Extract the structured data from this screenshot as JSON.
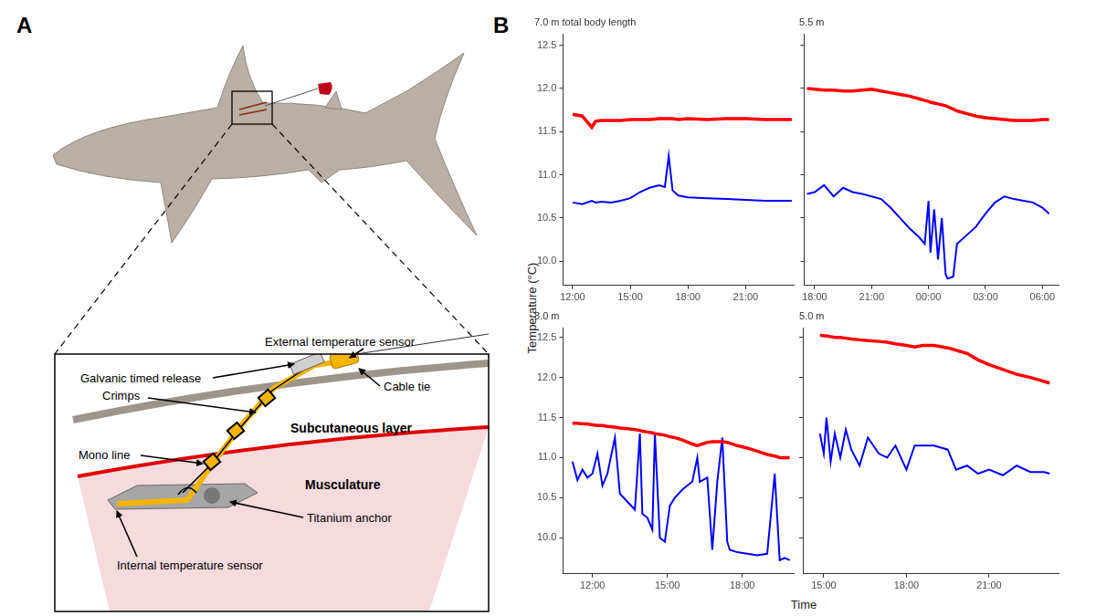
{
  "panel_labels": {
    "a": "A",
    "b": "B"
  },
  "diagram": {
    "callouts": [
      "External temperature sensor",
      "Galvanic timed release",
      "Cable tie",
      "Crimps",
      "Mono line",
      "Titanium anchor",
      "Internal temperature sensor"
    ],
    "layers": [
      "Subcutaneous layer",
      "Musculature"
    ]
  },
  "y_label": "Temperature (°C)",
  "x_label": "Time",
  "chart_data": [
    {
      "type": "line",
      "title": "7.0 m total body length",
      "x": [
        12.0,
        12.5,
        13.0,
        13.2,
        13.5,
        14,
        14.5,
        15,
        15.5,
        16,
        16.5,
        16.8,
        17.0,
        17.2,
        17.5,
        18,
        19,
        20,
        21,
        22,
        23,
        23.4
      ],
      "series": [
        {
          "color": "#ff0000",
          "values": [
            11.7,
            11.68,
            11.55,
            11.62,
            11.63,
            11.63,
            11.63,
            11.64,
            11.64,
            11.64,
            11.65,
            11.65,
            11.65,
            11.65,
            11.64,
            11.65,
            11.64,
            11.65,
            11.65,
            11.64,
            11.64,
            11.64
          ]
        },
        {
          "color": "#0000ff",
          "values": [
            10.68,
            10.66,
            10.7,
            10.68,
            10.69,
            10.68,
            10.7,
            10.73,
            10.8,
            10.85,
            10.88,
            10.86,
            11.22,
            10.82,
            10.76,
            10.74,
            10.73,
            10.72,
            10.71,
            10.7,
            10.7,
            10.7
          ]
        }
      ],
      "xlim": [
        11.5,
        23.5
      ],
      "xticks": [
        {
          "value": 12,
          "label": "12:00"
        },
        {
          "value": 15,
          "label": "15:00"
        },
        {
          "value": 18,
          "label": "18:00"
        },
        {
          "value": 21,
          "label": "21:00"
        }
      ],
      "ylim": [
        9.72,
        12.63
      ],
      "yticks": [
        {
          "value": 10,
          "label": "10.0"
        },
        10.5,
        {
          "value": 11,
          "label": "11.0"
        },
        11.5,
        {
          "value": 12,
          "label": "12.0"
        },
        12.5
      ],
      "grid": false
    },
    {
      "type": "line",
      "title": "5.5 m",
      "x": [
        17.6,
        18,
        18.5,
        19,
        19.5,
        20,
        20.5,
        21,
        21.5,
        22,
        22.5,
        23,
        23.5,
        23.8,
        24,
        24.1,
        24.3,
        24.5,
        24.7,
        24.9,
        25,
        25.3,
        25.5,
        26,
        26.5,
        27,
        27.5,
        28,
        28.5,
        29,
        29.5,
        30,
        30.35
      ],
      "series": [
        {
          "color": "#ff0000",
          "values": [
            12.0,
            11.99,
            11.98,
            11.98,
            11.97,
            11.97,
            11.98,
            11.99,
            11.97,
            11.95,
            11.93,
            11.91,
            11.88,
            11.86,
            11.85,
            11.84,
            11.83,
            11.82,
            11.81,
            11.8,
            11.79,
            11.76,
            11.74,
            11.71,
            11.68,
            11.66,
            11.65,
            11.64,
            11.63,
            11.63,
            11.63,
            11.64,
            11.64
          ]
        },
        {
          "color": "#0000ff",
          "values": [
            10.78,
            10.8,
            10.88,
            10.75,
            10.85,
            10.8,
            10.78,
            10.75,
            10.72,
            10.62,
            10.5,
            10.38,
            10.28,
            10.2,
            10.7,
            10.1,
            10.6,
            10.02,
            10.5,
            9.85,
            9.8,
            9.82,
            10.2,
            10.3,
            10.4,
            10.55,
            10.68,
            10.75,
            10.72,
            10.7,
            10.68,
            10.62,
            10.55
          ]
        }
      ],
      "xlim": [
        17.45,
        30.85
      ],
      "xticks": [
        {
          "value": 18,
          "label": "18:00"
        },
        {
          "value": 21,
          "label": "21:00"
        },
        {
          "value": 24,
          "label": "00:00"
        },
        {
          "value": 27,
          "label": "03:00"
        },
        {
          "value": 30,
          "label": "06:00"
        }
      ],
      "ylim": [
        9.72,
        12.63
      ],
      "yticks": [
        {
          "value": 10,
          "label": "10.0"
        },
        10.5,
        {
          "value": 11,
          "label": "11.0"
        },
        11.5,
        {
          "value": 12,
          "label": "12.0"
        },
        12.5
      ],
      "grid": false,
      "tick_labels": "x"
    },
    {
      "type": "line",
      "title": "8.0 m",
      "x": [
        11.2,
        11.4,
        11.6,
        11.8,
        12.0,
        12.2,
        12.4,
        12.6,
        12.9,
        13.1,
        13.4,
        13.7,
        13.9,
        14.0,
        14.2,
        14.4,
        14.5,
        14.7,
        14.9,
        15.1,
        15.3,
        15.6,
        16.0,
        16.2,
        16.3,
        16.6,
        16.8,
        17.0,
        17.2,
        17.4,
        17.5,
        17.8,
        18.2,
        18.6,
        19.0,
        19.3,
        19.5,
        19.7,
        19.9
      ],
      "series": [
        {
          "color": "#ff0000",
          "values": [
            11.43,
            11.43,
            11.42,
            11.42,
            11.41,
            11.4,
            11.4,
            11.39,
            11.38,
            11.37,
            11.36,
            11.35,
            11.34,
            11.33,
            11.32,
            11.31,
            11.3,
            11.29,
            11.28,
            11.26,
            11.25,
            11.22,
            11.17,
            11.15,
            11.16,
            11.19,
            11.2,
            11.2,
            11.2,
            11.19,
            11.18,
            11.15,
            11.12,
            11.08,
            11.04,
            11.02,
            11.0,
            11.0,
            11.0
          ]
        },
        {
          "color": "#0000ff",
          "values": [
            10.95,
            10.72,
            10.85,
            10.75,
            10.8,
            11.05,
            10.65,
            10.8,
            11.25,
            10.55,
            10.45,
            10.35,
            11.3,
            10.3,
            10.25,
            10.1,
            11.3,
            10.0,
            9.95,
            10.4,
            10.5,
            10.6,
            10.7,
            11.0,
            10.7,
            10.75,
            9.85,
            10.7,
            11.25,
            9.95,
            9.85,
            9.82,
            9.8,
            9.78,
            9.8,
            10.8,
            9.72,
            9.75,
            9.72
          ]
        }
      ],
      "xlim": [
        10.82,
        20.06
      ],
      "xticks": [
        {
          "value": 12,
          "label": "12:00"
        },
        {
          "value": 15,
          "label": "15:00"
        },
        {
          "value": 18,
          "label": "18:00"
        }
      ],
      "ylim": [
        9.55,
        12.62
      ],
      "yticks": [
        {
          "value": 10,
          "label": "10.0"
        },
        10.5,
        {
          "value": 11,
          "label": "11.0"
        },
        11.5,
        {
          "value": 12,
          "label": "12.0"
        },
        12.5
      ],
      "grid": false
    },
    {
      "type": "line",
      "title": "5.0 m",
      "x": [
        14.86,
        15.0,
        15.1,
        15.25,
        15.4,
        15.6,
        15.8,
        16.0,
        16.3,
        16.6,
        17.0,
        17.3,
        17.6,
        18.0,
        18.3,
        18.6,
        19.0,
        19.5,
        19.8,
        20.2,
        20.6,
        21.0,
        21.5,
        22.0,
        22.5,
        23.0,
        23.2
      ],
      "series": [
        {
          "color": "#ff0000",
          "values": [
            12.53,
            12.52,
            12.52,
            12.51,
            12.5,
            12.5,
            12.49,
            12.48,
            12.47,
            12.46,
            12.45,
            12.44,
            12.42,
            12.4,
            12.38,
            12.4,
            12.4,
            12.37,
            12.34,
            12.3,
            12.22,
            12.16,
            12.1,
            12.04,
            12.0,
            11.95,
            11.93
          ]
        },
        {
          "color": "#0000ff",
          "values": [
            11.3,
            11.05,
            11.5,
            10.95,
            11.3,
            11.0,
            11.35,
            11.1,
            10.9,
            11.25,
            11.05,
            11.0,
            11.15,
            10.85,
            11.15,
            11.15,
            11.15,
            11.1,
            10.85,
            10.9,
            10.8,
            10.85,
            10.78,
            10.9,
            10.82,
            10.82,
            10.8
          ]
        }
      ],
      "xlim": [
        14.24,
        23.52
      ],
      "xticks": [
        {
          "value": 15,
          "label": "15:00"
        },
        {
          "value": 18,
          "label": "18:00"
        },
        {
          "value": 21,
          "label": "21:00"
        }
      ],
      "ylim": [
        9.55,
        12.62
      ],
      "yticks": [
        {
          "value": 10,
          "label": "10.0"
        },
        10.5,
        {
          "value": 11,
          "label": "11.0"
        },
        11.5,
        {
          "value": 12,
          "label": "12.0"
        },
        12.5
      ],
      "grid": false,
      "tick_labels": "x"
    }
  ]
}
